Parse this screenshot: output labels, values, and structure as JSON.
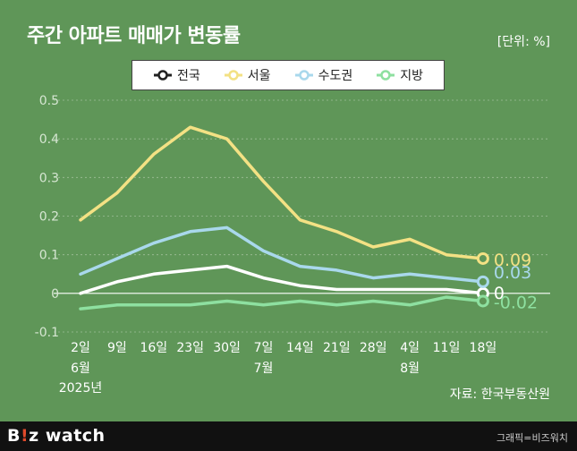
{
  "header": {
    "title": "주간 아파트 매매가 변동률",
    "unit": "[단위: %]"
  },
  "source": "자료: 한국부동산원",
  "footer": {
    "logo_prefix": "B",
    "logo_accent": "!",
    "logo_suffix": "z watch",
    "credit": "그래픽=비즈워치"
  },
  "colors": {
    "background": "#5f9658",
    "national": "#ffffff",
    "seoul": "#f3e184",
    "metro": "#a9d8ec",
    "regional": "#8ee0a0"
  },
  "chart_data": {
    "type": "line",
    "title": "주간 아파트 매매가 변동률",
    "ylabel": "[단위: %]",
    "ylim": [
      -0.1,
      0.5
    ],
    "yticks": [
      -0.1,
      0,
      0.1,
      0.2,
      0.3,
      0.4,
      0.5
    ],
    "ytick_labels": [
      "-0.1",
      "0",
      "0.1",
      "0.2",
      "0.3",
      "0.4",
      "0.5"
    ],
    "grid": true,
    "legend": "top",
    "categories": [
      "2일",
      "9일",
      "16일",
      "23일",
      "30일",
      "7일",
      "14일",
      "21일",
      "28일",
      "4일",
      "11일",
      "18일"
    ],
    "category_sublabels": [
      {
        "index": 0,
        "lines": [
          "6월",
          "2025년"
        ]
      },
      {
        "index": 5,
        "lines": [
          "7월"
        ]
      },
      {
        "index": 9,
        "lines": [
          "8월"
        ]
      }
    ],
    "series": [
      {
        "name": "전국",
        "color": "#ffffff",
        "values": [
          0.0,
          0.03,
          0.05,
          0.06,
          0.07,
          0.04,
          0.02,
          0.01,
          0.01,
          0.01,
          0.01,
          0.0
        ],
        "end_label": "0"
      },
      {
        "name": "서울",
        "color": "#f3e184",
        "values": [
          0.19,
          0.26,
          0.36,
          0.43,
          0.4,
          0.29,
          0.19,
          0.16,
          0.12,
          0.14,
          0.1,
          0.09
        ],
        "end_label": "0.09"
      },
      {
        "name": "수도권",
        "color": "#a9d8ec",
        "values": [
          0.05,
          0.09,
          0.13,
          0.16,
          0.17,
          0.11,
          0.07,
          0.06,
          0.04,
          0.05,
          0.04,
          0.03
        ],
        "end_label": "0.03"
      },
      {
        "name": "지방",
        "color": "#8ee0a0",
        "values": [
          -0.04,
          -0.03,
          -0.03,
          -0.03,
          -0.02,
          -0.03,
          -0.02,
          -0.03,
          -0.02,
          -0.03,
          -0.01,
          -0.02
        ],
        "end_label": "-0.02"
      }
    ]
  }
}
